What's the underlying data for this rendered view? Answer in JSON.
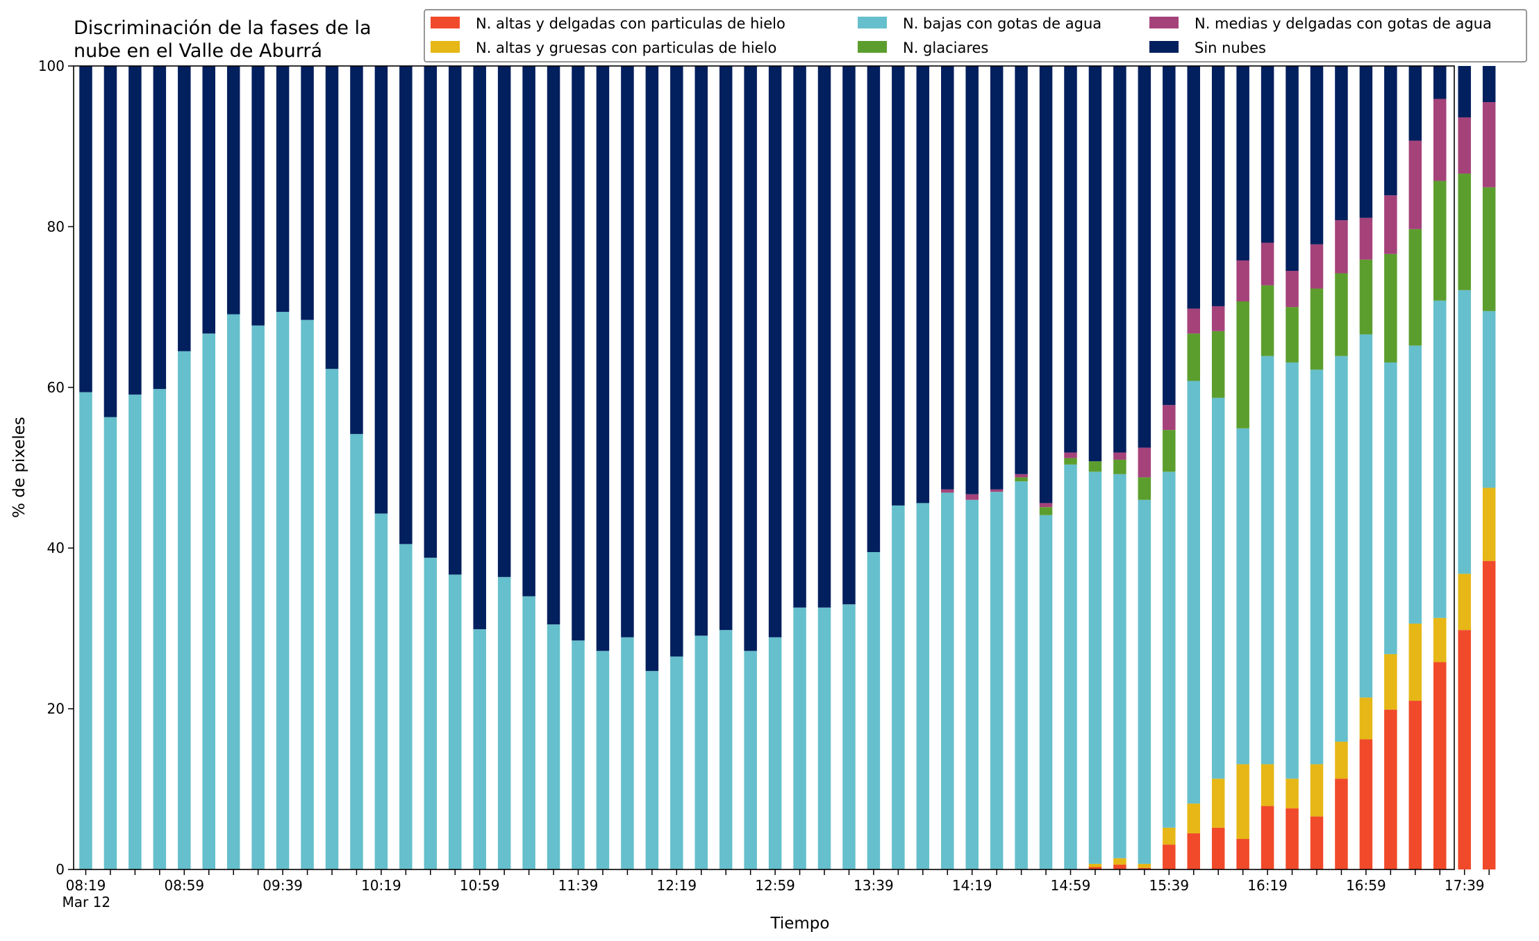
{
  "chart_data": {
    "type": "bar",
    "stacked": true,
    "title_lines": [
      "Discriminación de la fases de la",
      "nube en el Valle de Aburrá"
    ],
    "xlabel": "Tiempo",
    "ylabel": "% de pixeles",
    "ylim": [
      0,
      100
    ],
    "yticks": [
      0,
      20,
      40,
      60,
      80,
      100
    ],
    "grid": false,
    "legend_position": "top-right",
    "x_tick_labels": [
      {
        "index": 0,
        "label": "08:19",
        "sublabel": "Mar 12"
      },
      {
        "index": 4,
        "label": "08:59"
      },
      {
        "index": 8,
        "label": "09:39"
      },
      {
        "index": 12,
        "label": "10:19"
      },
      {
        "index": 16,
        "label": "10:59"
      },
      {
        "index": 20,
        "label": "11:39"
      },
      {
        "index": 24,
        "label": "12:19"
      },
      {
        "index": 28,
        "label": "12:59"
      },
      {
        "index": 32,
        "label": "13:39"
      },
      {
        "index": 36,
        "label": "14:19"
      },
      {
        "index": 40,
        "label": "14:59"
      },
      {
        "index": 44,
        "label": "15:39"
      },
      {
        "index": 48,
        "label": "16:19"
      },
      {
        "index": 52,
        "label": "16:59"
      },
      {
        "index": 56,
        "label": "17:39"
      }
    ],
    "categories": [
      "08:19",
      "08:29",
      "08:39",
      "08:49",
      "08:59",
      "09:09",
      "09:19",
      "09:29",
      "09:39",
      "09:49",
      "09:59",
      "10:09",
      "10:19",
      "10:29",
      "10:39",
      "10:49",
      "10:59",
      "11:09",
      "11:19",
      "11:29",
      "11:39",
      "11:49",
      "11:59",
      "12:09",
      "12:19",
      "12:29",
      "12:39",
      "12:49",
      "12:59",
      "13:09",
      "13:19",
      "13:29",
      "13:39",
      "13:49",
      "13:59",
      "14:09",
      "14:19",
      "14:29",
      "14:39",
      "14:49",
      "14:59",
      "15:09",
      "15:19",
      "15:29",
      "15:39",
      "15:49",
      "15:59",
      "16:09",
      "16:19",
      "16:29",
      "16:39",
      "16:49",
      "16:59",
      "17:09",
      "17:19",
      "17:29",
      "17:39",
      "17:49"
    ],
    "series": [
      {
        "name": "N. altas y delgadas con particulas de hielo",
        "color": "#f04a2a",
        "values": [
          0,
          0,
          0,
          0,
          0,
          0,
          0,
          0,
          0,
          0,
          0,
          0,
          0,
          0,
          0,
          0,
          0,
          0,
          0,
          0,
          0,
          0,
          0,
          0,
          0,
          0,
          0,
          0,
          0,
          0,
          0,
          0,
          0,
          0,
          0,
          0,
          0,
          0,
          0,
          0,
          0,
          0.3,
          0.6,
          0.2,
          3.1,
          4.5,
          5.2,
          3.8,
          7.9,
          7.6,
          6.6,
          11.3,
          16.2,
          19.9,
          21.0,
          25.8,
          29.8,
          38.4
        ]
      },
      {
        "name": "N. altas y gruesas con particulas de hielo",
        "color": "#e6b716",
        "values": [
          0,
          0,
          0,
          0,
          0,
          0,
          0,
          0,
          0,
          0,
          0,
          0,
          0,
          0,
          0,
          0,
          0,
          0,
          0,
          0,
          0,
          0,
          0,
          0,
          0,
          0,
          0,
          0,
          0,
          0,
          0,
          0,
          0,
          0,
          0,
          0,
          0,
          0,
          0,
          0,
          0,
          0.4,
          0.8,
          0.5,
          2.1,
          3.7,
          6.1,
          9.3,
          5.2,
          3.7,
          6.5,
          4.6,
          5.2,
          6.9,
          9.6,
          5.5,
          7.0,
          9.1
        ]
      },
      {
        "name": "N. bajas con gotas de agua",
        "color": "#66bfcc",
        "values": [
          59.4,
          56.3,
          59.1,
          59.8,
          64.5,
          66.7,
          69.1,
          67.7,
          69.4,
          68.4,
          62.3,
          54.2,
          44.3,
          40.5,
          38.8,
          36.7,
          29.9,
          36.4,
          34.0,
          30.5,
          28.5,
          27.2,
          28.9,
          24.7,
          26.5,
          29.1,
          29.8,
          27.2,
          28.9,
          32.6,
          32.6,
          33.0,
          39.5,
          45.3,
          45.6,
          46.9,
          46.0,
          47.0,
          48.3,
          44.1,
          50.4,
          48.8,
          47.8,
          45.3,
          44.3,
          52.6,
          47.4,
          41.8,
          50.8,
          51.8,
          49.1,
          48.0,
          45.2,
          36.3,
          34.6,
          39.5,
          35.3,
          22.0
        ]
      },
      {
        "name": "N. glaciares",
        "color": "#5c9e2e",
        "values": [
          0,
          0,
          0,
          0,
          0,
          0,
          0,
          0,
          0,
          0,
          0,
          0,
          0,
          0,
          0,
          0,
          0,
          0,
          0,
          0,
          0,
          0,
          0,
          0,
          0,
          0,
          0,
          0,
          0,
          0,
          0,
          0,
          0,
          0,
          0,
          0,
          0,
          0,
          0.5,
          1.0,
          0.8,
          1.3,
          1.8,
          2.8,
          5.2,
          5.9,
          8.3,
          15.8,
          8.8,
          6.9,
          10.1,
          10.3,
          9.3,
          13.5,
          14.5,
          14.9,
          14.5,
          15.4
        ]
      },
      {
        "name": "N. medias y delgadas con gotas de agua",
        "color": "#a5427a",
        "values": [
          0,
          0,
          0,
          0,
          0,
          0,
          0,
          0,
          0,
          0,
          0,
          0,
          0,
          0,
          0,
          0,
          0,
          0,
          0,
          0,
          0,
          0,
          0,
          0,
          0,
          0,
          0,
          0,
          0,
          0,
          0,
          0,
          0,
          0,
          0,
          0.4,
          0.7,
          0.3,
          0.4,
          0.5,
          0.7,
          0,
          0.9,
          3.7,
          3.1,
          3.1,
          3.1,
          5.1,
          5.3,
          4.5,
          5.5,
          6.6,
          5.2,
          7.3,
          11.0,
          10.2,
          7.0,
          10.6
        ]
      },
      {
        "name": "Sin nubes",
        "color": "#021f5e",
        "values": [
          40.6,
          43.7,
          40.9,
          40.2,
          35.5,
          33.3,
          30.9,
          32.3,
          30.6,
          31.6,
          37.7,
          45.8,
          55.7,
          59.5,
          61.2,
          63.3,
          70.1,
          63.6,
          66.0,
          69.5,
          71.5,
          72.8,
          71.1,
          75.3,
          73.5,
          70.9,
          70.2,
          72.8,
          71.1,
          67.4,
          67.4,
          67.0,
          60.5,
          54.7,
          54.4,
          52.7,
          53.3,
          52.7,
          50.8,
          54.4,
          48.1,
          49.2,
          48.1,
          47.5,
          42.2,
          30.2,
          29.9,
          24.2,
          22.0,
          25.5,
          22.2,
          19.2,
          18.9,
          16.1,
          9.3,
          4.1,
          6.4,
          4.5
        ]
      }
    ]
  }
}
